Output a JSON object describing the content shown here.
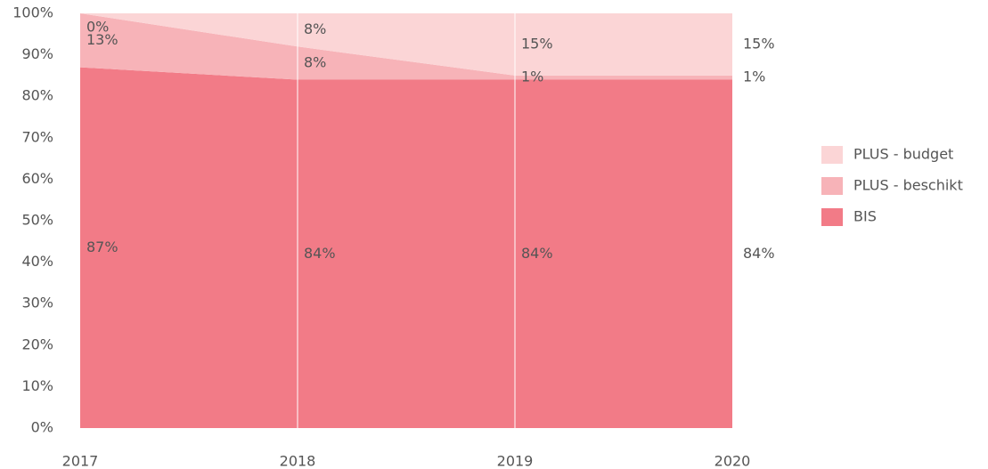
{
  "chart_data": {
    "type": "stacked-area",
    "categories": [
      "2017",
      "2018",
      "2019",
      "2020"
    ],
    "series": [
      {
        "name": "BIS",
        "color": "#f27b87",
        "values": [
          87,
          84,
          84,
          84
        ],
        "value_labels": [
          "87%",
          "84%",
          "84%",
          "84%"
        ]
      },
      {
        "name": "PLUS - beschikt",
        "color": "#f7b3b8",
        "values": [
          13,
          8,
          1,
          1
        ],
        "value_labels": [
          "13%",
          "8%",
          "1%",
          "1%"
        ]
      },
      {
        "name": "PLUS - budget",
        "color": "#fbd5d6",
        "values": [
          0,
          8,
          15,
          15
        ],
        "value_labels": [
          "0%",
          "8%",
          "15%",
          "15%"
        ]
      }
    ],
    "ylim": [
      0,
      100
    ],
    "yticks": [
      {
        "value": 0,
        "label": "0%"
      },
      {
        "value": 10,
        "label": "10%"
      },
      {
        "value": 20,
        "label": "20%"
      },
      {
        "value": 30,
        "label": "30%"
      },
      {
        "value": 40,
        "label": "40%"
      },
      {
        "value": 50,
        "label": "50%"
      },
      {
        "value": 60,
        "label": "60%"
      },
      {
        "value": 70,
        "label": "70%"
      },
      {
        "value": 80,
        "label": "80%"
      },
      {
        "value": 90,
        "label": "90%"
      },
      {
        "value": 100,
        "label": "100%"
      }
    ],
    "legend": "right"
  }
}
